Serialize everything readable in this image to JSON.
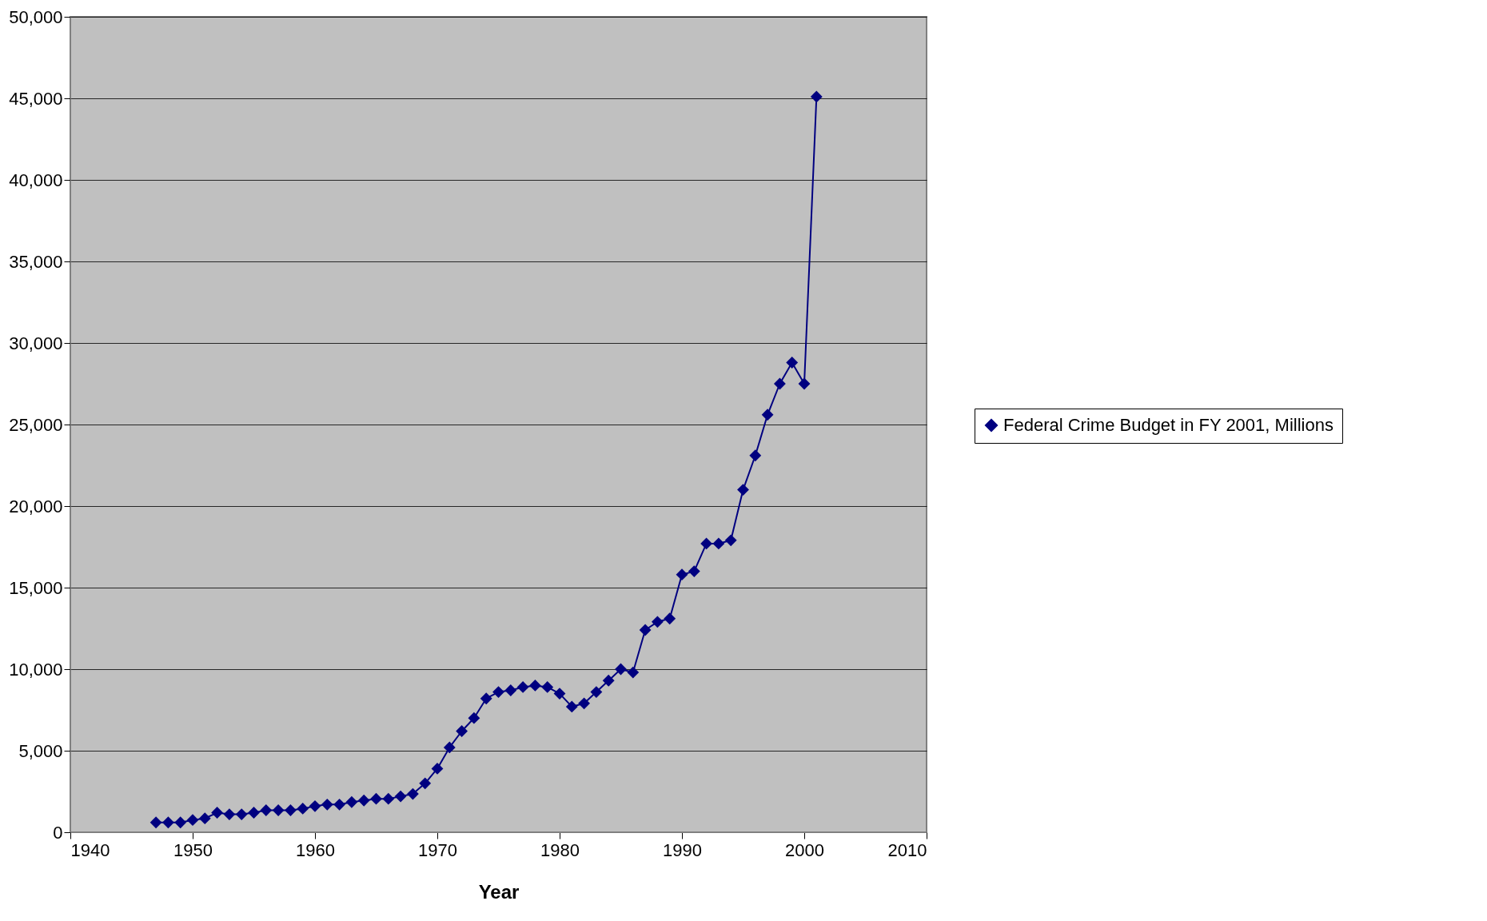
{
  "chart_data": {
    "type": "line",
    "xlabel": "Year",
    "x": [
      1947,
      1948,
      1949,
      1950,
      1951,
      1952,
      1953,
      1954,
      1955,
      1956,
      1957,
      1958,
      1959,
      1960,
      1961,
      1962,
      1963,
      1964,
      1965,
      1966,
      1967,
      1968,
      1969,
      1970,
      1971,
      1972,
      1973,
      1974,
      1975,
      1976,
      1977,
      1978,
      1979,
      1980,
      1981,
      1982,
      1983,
      1984,
      1985,
      1986,
      1987,
      1988,
      1989,
      1990,
      1991,
      1992,
      1993,
      1994,
      1995,
      1996,
      1997,
      1998,
      1999,
      2000,
      2001
    ],
    "series": [
      {
        "name": "Federal Crime Budget in FY 2001, Millions",
        "color": "#000080",
        "values": [
          600,
          600,
          600,
          750,
          850,
          1200,
          1100,
          1100,
          1200,
          1350,
          1350,
          1350,
          1450,
          1600,
          1700,
          1700,
          1850,
          1950,
          2050,
          2050,
          2200,
          2350,
          3000,
          3900,
          5200,
          6200,
          7000,
          8200,
          8600,
          8700,
          8900,
          9000,
          8900,
          8500,
          7700,
          7900,
          8600,
          9300,
          10000,
          9800,
          12400,
          12900,
          13100,
          15800,
          16000,
          17700,
          17700,
          17900,
          21000,
          23100,
          25600,
          27500,
          28800,
          27500,
          45100
        ]
      }
    ],
    "xlim": [
      1940,
      2010
    ],
    "xticks": [
      1940,
      1950,
      1960,
      1970,
      1980,
      1990,
      2000,
      2010
    ],
    "ylim": [
      0,
      50000
    ],
    "yticks": [
      0,
      {
        "value": 5000,
        "label": "5,000"
      },
      {
        "value": 10000,
        "label": "10,000"
      },
      {
        "value": 15000,
        "label": "15,000"
      },
      {
        "value": 20000,
        "label": "20,000"
      },
      {
        "value": 25000,
        "label": "25,000"
      },
      {
        "value": 30000,
        "label": "30,000"
      },
      {
        "value": 35000,
        "label": "35,000"
      },
      {
        "value": 40000,
        "label": "40,000"
      },
      {
        "value": 45000,
        "label": "45,000"
      },
      {
        "value": 50000,
        "label": "50,000"
      }
    ],
    "grid": "y",
    "legend": "right",
    "marker": "diamond",
    "line_style": "solid"
  }
}
